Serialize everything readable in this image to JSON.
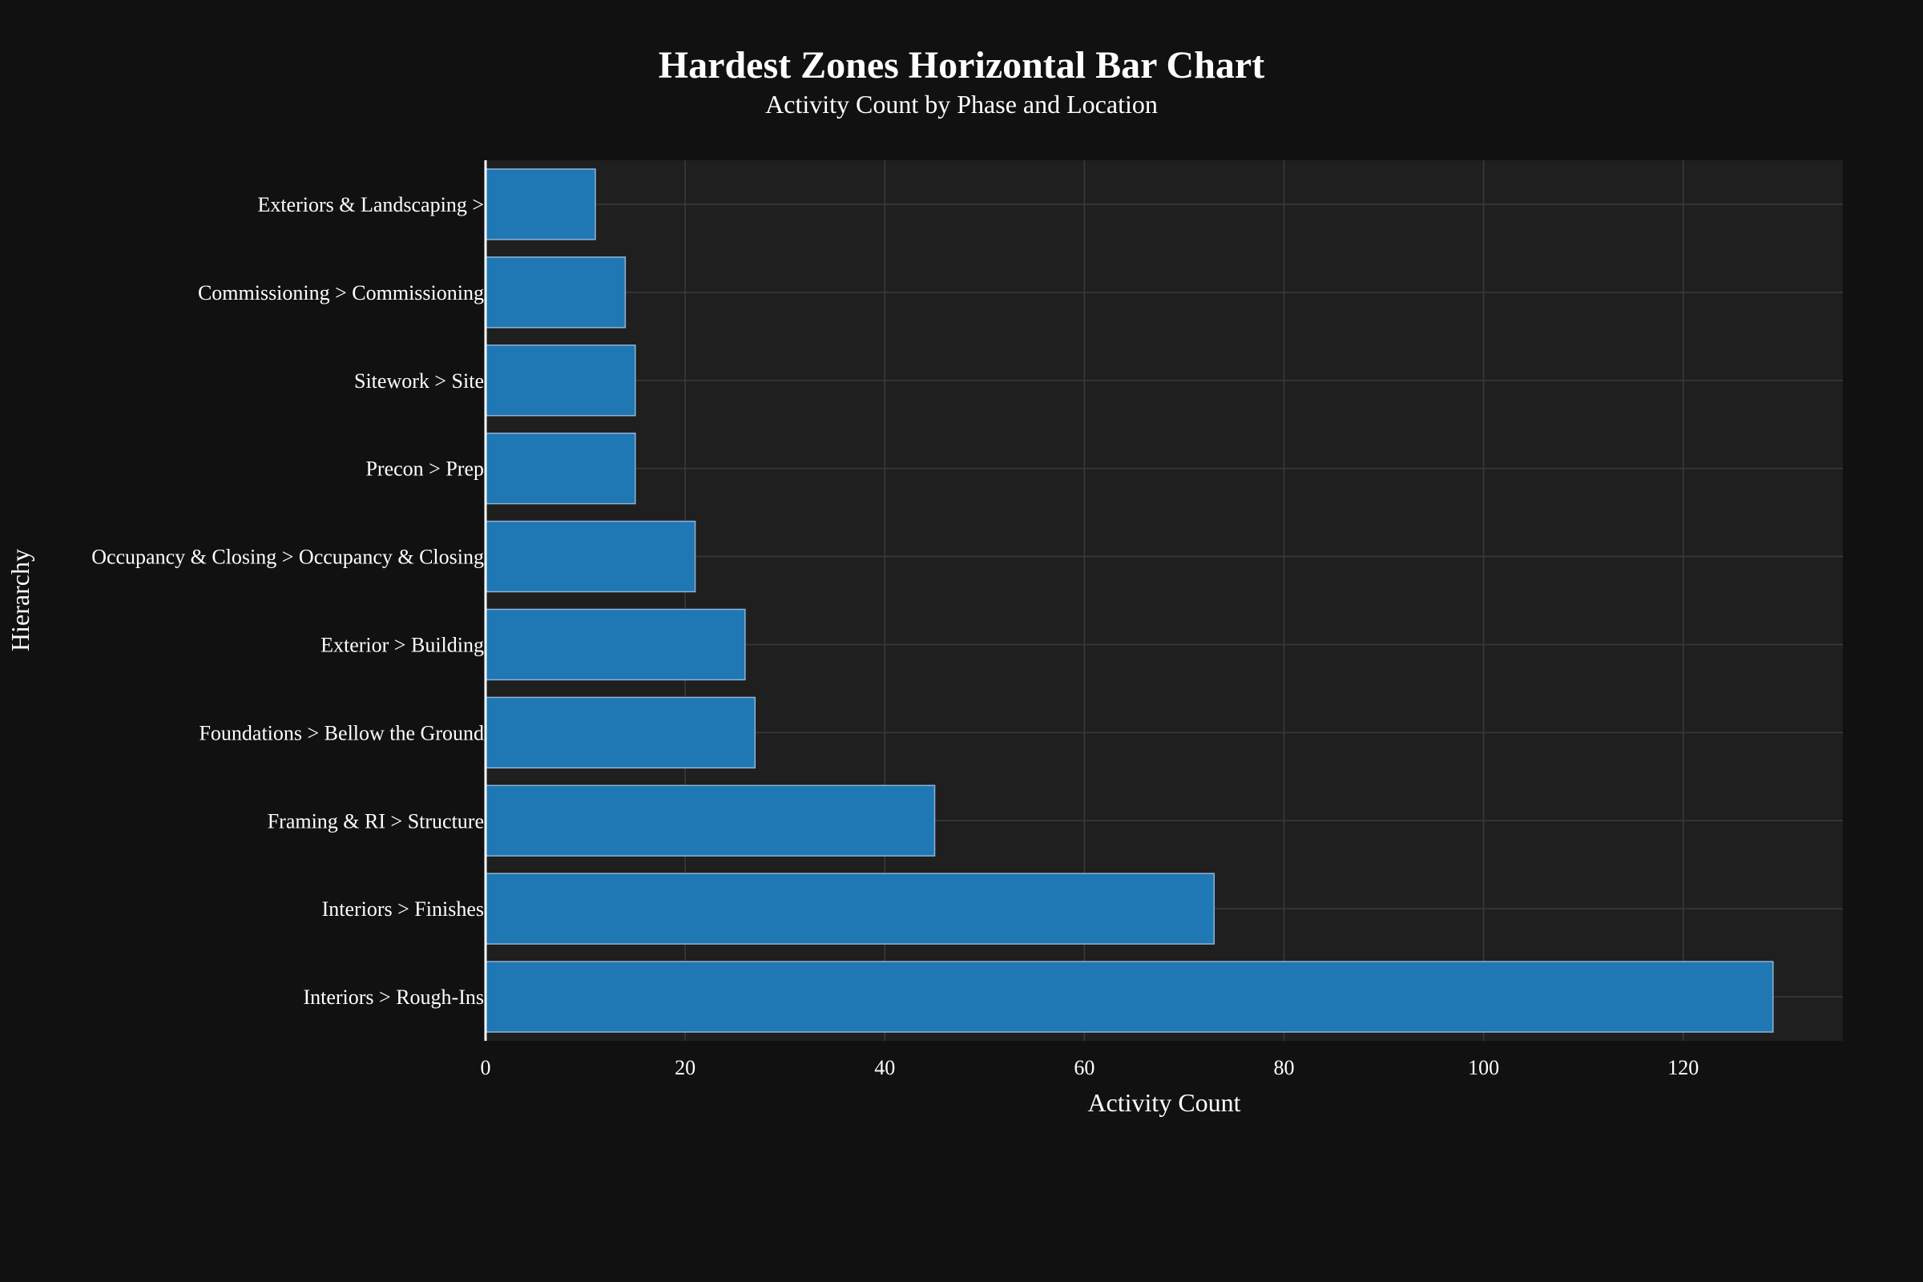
{
  "colors": {
    "background": "#111111",
    "plot_background": "#1f1f1f",
    "bar_fill": "#1f77b4",
    "bar_stroke": "#8fb3d6",
    "grid": "#3a3a3a",
    "axis_line": "#ffffff",
    "text": "#ffffff"
  },
  "chart_data": {
    "type": "bar",
    "orientation": "horizontal",
    "title": "Hardest Zones Horizontal Bar Chart",
    "subtitle": "Activity Count by Phase and Location",
    "xlabel": "Activity Count",
    "ylabel": "Hierarchy",
    "xlim": [
      0,
      136
    ],
    "xticks": [
      0,
      20,
      40,
      60,
      80,
      100,
      120
    ],
    "grid": true,
    "legend": "none",
    "categories": [
      "Exteriors & Landscaping >",
      "Commissioning > Commissioning",
      "Sitework > Site",
      "Precon > Prep",
      "Occupancy & Closing > Occupancy & Closing",
      "Exterior > Building",
      "Foundations > Bellow the Ground",
      "Framing & RI > Structure",
      "Interiors > Finishes",
      "Interiors > Rough-Ins"
    ],
    "values": [
      11,
      14,
      15,
      15,
      21,
      26,
      27,
      45,
      73,
      129
    ]
  }
}
